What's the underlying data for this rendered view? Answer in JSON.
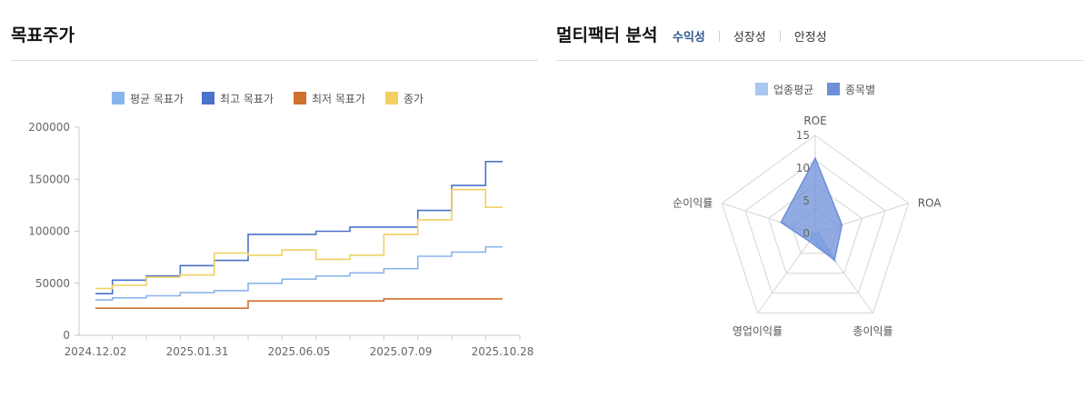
{
  "left": {
    "title": "목표주가"
  },
  "right": {
    "title": "멀티팩터 분석",
    "tabs": [
      {
        "label": "수익성",
        "active": true
      },
      {
        "label": "성장성",
        "active": false
      },
      {
        "label": "안정성",
        "active": false
      }
    ]
  },
  "chart_data": [
    {
      "type": "line",
      "step": true,
      "legend_position": "top-center",
      "series": [
        {
          "name": "평균 목표가",
          "color": "#8ab4ec",
          "values": [
            34000,
            36000,
            38000,
            41000,
            43000,
            50000,
            54000,
            57000,
            60000,
            64000,
            76000,
            80000,
            85000
          ]
        },
        {
          "name": "최고 목표가",
          "color": "#4a72c8",
          "values": [
            40000,
            53000,
            57000,
            67000,
            72000,
            97000,
            97000,
            100000,
            104000,
            104000,
            120000,
            144000,
            167000
          ]
        },
        {
          "name": "최저 목표가",
          "color": "#d0702f",
          "values": [
            26000,
            26000,
            26000,
            26000,
            26000,
            33000,
            33000,
            33000,
            33000,
            35000,
            35000,
            35000,
            35000
          ]
        },
        {
          "name": "종가",
          "color": "#f0d060",
          "values": [
            45000,
            48000,
            56000,
            58000,
            79000,
            77000,
            82000,
            73000,
            77000,
            97000,
            111000,
            140000,
            123000
          ]
        }
      ],
      "xticks": [
        "2024.12.02",
        "2025.01.31",
        "2025.06.05",
        "2025.07.09",
        "2025.10.28"
      ],
      "yticks": [
        "0",
        "50000",
        "100000",
        "150000",
        "200000"
      ],
      "ylim": [
        0,
        200000
      ],
      "grid": false
    },
    {
      "type": "radar",
      "legend_position": "top-center",
      "axes": [
        "ROE",
        "ROA",
        "총이익률",
        "영업이익률",
        "순이익률"
      ],
      "rticks": [
        "0",
        "5",
        "10",
        "15"
      ],
      "rlim": [
        0,
        15
      ],
      "series": [
        {
          "name": "업종평균",
          "color": "#a9c8f0",
          "values": [
            0,
            0.5,
            5.5,
            1.0,
            0.5
          ]
        },
        {
          "name": "종목별",
          "color": "#6c8fd8",
          "values": [
            11.5,
            4.3,
            5.0,
            1.5,
            5.5
          ]
        }
      ]
    }
  ]
}
